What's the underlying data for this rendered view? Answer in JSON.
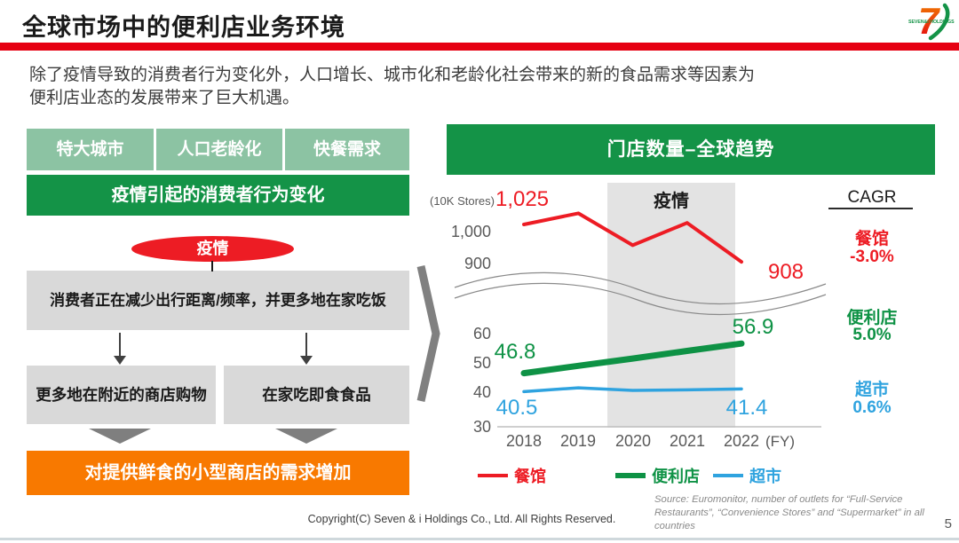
{
  "header": {
    "title": "全球市场中的便利店业务环境",
    "page_number": "5"
  },
  "logo": {
    "brand": "SEVEN&i HOLDINGS"
  },
  "intro": {
    "line1": "除了疫情导致的消费者行为变化外，人口增长、城市化和老龄化社会带来的新的食品需求等因素为",
    "line2": "便利店业态的发展带来了巨大机遇。"
  },
  "left_flow": {
    "factors": [
      "特大城市",
      "人口老龄化",
      "快餐需求"
    ],
    "banner": "疫情引起的消费者行为变化",
    "pandemic_bubble": "疫情",
    "behavior": "消费者正在减少出行距离/频率，并更多地在家吃饭",
    "outcome_left": "更多地在附近的商店购物",
    "outcome_right": "在家吃即食食品",
    "conclusion": "对提供鲜食的小型商店的需求增加"
  },
  "chart": {
    "banner": "门店数量–全球趋势",
    "unit_label": "(10K Stores)",
    "cagr_header": "CAGR",
    "fy_label": "(FY)"
  },
  "chart_data": {
    "type": "line",
    "title": "门店数量–全球趋势",
    "unit": "10K Stores",
    "categories": [
      "2018",
      "2019",
      "2020",
      "2021",
      "2022"
    ],
    "y_ticks": [
      "1,000",
      "900",
      "60",
      "50",
      "40",
      "30"
    ],
    "axis_break": true,
    "covid_band": {
      "label": "疫情",
      "from": 2019.5,
      "to": 2021.5
    },
    "legend_position": "bottom",
    "series": [
      {
        "name": "餐馆",
        "color": "#ED1C24",
        "values": [
          1025,
          1060,
          960,
          1030,
          908
        ],
        "start_label": "1,025",
        "end_label": "908",
        "cagr": "-3.0%"
      },
      {
        "name": "便利店",
        "color": "#0E9245",
        "values": [
          46.8,
          49.3,
          51.8,
          54.4,
          56.9
        ],
        "start_label": "46.8",
        "end_label": "56.9",
        "cagr": "5.0%"
      },
      {
        "name": "超市",
        "color": "#2FA3DF",
        "values": [
          40.5,
          41.8,
          40.9,
          41.1,
          41.4
        ],
        "start_label": "40.5",
        "end_label": "41.4",
        "cagr": "0.6%"
      }
    ]
  },
  "footer": {
    "copyright": "Copyright(C) Seven & i Holdings Co., Ltd. All Rights Reserved.",
    "source": "Source: Euromonitor, number of outlets for “Full-Service Restaurants”, “Convenience Stores” and “Supermarket” in all countries"
  }
}
